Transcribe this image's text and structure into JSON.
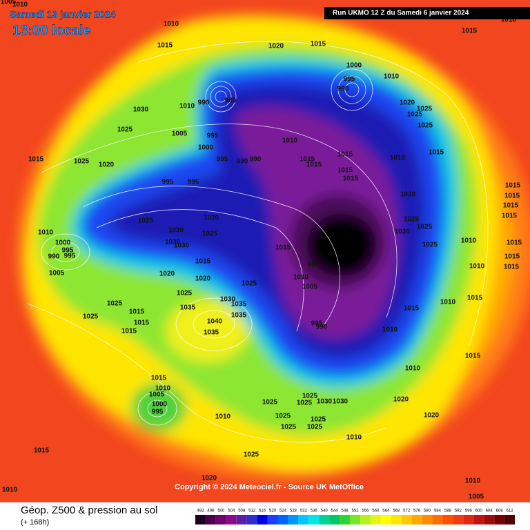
{
  "header": {
    "date": "Samedi 13 janvier 2024",
    "time": "13:00 locale",
    "run": "Run UKMO 12 Z du Samedi 6 janvier 2024"
  },
  "footer": {
    "title": "Géop. Z500 & pression au sol",
    "lead": "(+ 168h)",
    "copyright": "Copyright © 2024 Meteociel.fr - Source UK MetOffice"
  },
  "isobar_labels": [
    1010,
    1015,
    1020,
    1015,
    1015,
    1000,
    995,
    990,
    1010,
    1030,
    1010,
    990,
    980,
    1020,
    1025,
    1025,
    1025,
    1025,
    1005,
    995,
    1000,
    1010,
    1015,
    1025,
    1020,
    995,
    990,
    990,
    1015,
    1015,
    1015,
    1015,
    1015,
    1010,
    1015,
    995,
    995,
    1030,
    1015,
    1015,
    1015,
    1015,
    1025,
    1020,
    1025,
    1025,
    1010,
    1030,
    1025,
    1020,
    1000,
    995,
    1030,
    1030,
    1015,
    1025,
    1010,
    1015,
    990,
    995,
    1015,
    995,
    1010,
    1015,
    1015,
    1005,
    1020,
    1010,
    1005,
    1020,
    1025,
    1025,
    1030,
    1035,
    1025,
    1015,
    1010,
    1015,
    1035,
    1035,
    1040,
    1015,
    1025,
    1015,
    995,
    990,
    1010,
    1015,
    1035,
    1015,
    1010,
    1015,
    1010,
    1005,
    1000,
    995,
    1025,
    1025,
    1025,
    1030,
    1030,
    1020,
    1025,
    1010,
    1025,
    1025,
    1020,
    1025,
    1010,
    1015,
    1025,
    1020,
    1010,
    1005,
    1010,
    1005,
    1010,
    1010
  ],
  "color_scale": {
    "labels": [
      492,
      496,
      500,
      504,
      508,
      512,
      516,
      520,
      524,
      528,
      532,
      536,
      540,
      544,
      548,
      552,
      556,
      560,
      564,
      568,
      572,
      576,
      580,
      584,
      588,
      592,
      596,
      600,
      604,
      608,
      612
    ],
    "colors": [
      "#1a001a",
      "#4b004b",
      "#6e006e",
      "#8c0a8c",
      "#5a1ea8",
      "#2d2dc8",
      "#0000e6",
      "#1e3cff",
      "#0064ff",
      "#0096ff",
      "#00c8ff",
      "#00e6e6",
      "#00d296",
      "#00c864",
      "#32d232",
      "#78e628",
      "#b4f01e",
      "#e6f514",
      "#ffff00",
      "#ffe600",
      "#ffc800",
      "#ffaa00",
      "#ff8c00",
      "#ff6e00",
      "#ff5000",
      "#f03c14",
      "#dc2814",
      "#be1414",
      "#a00a0a",
      "#780000",
      "#500000"
    ]
  }
}
